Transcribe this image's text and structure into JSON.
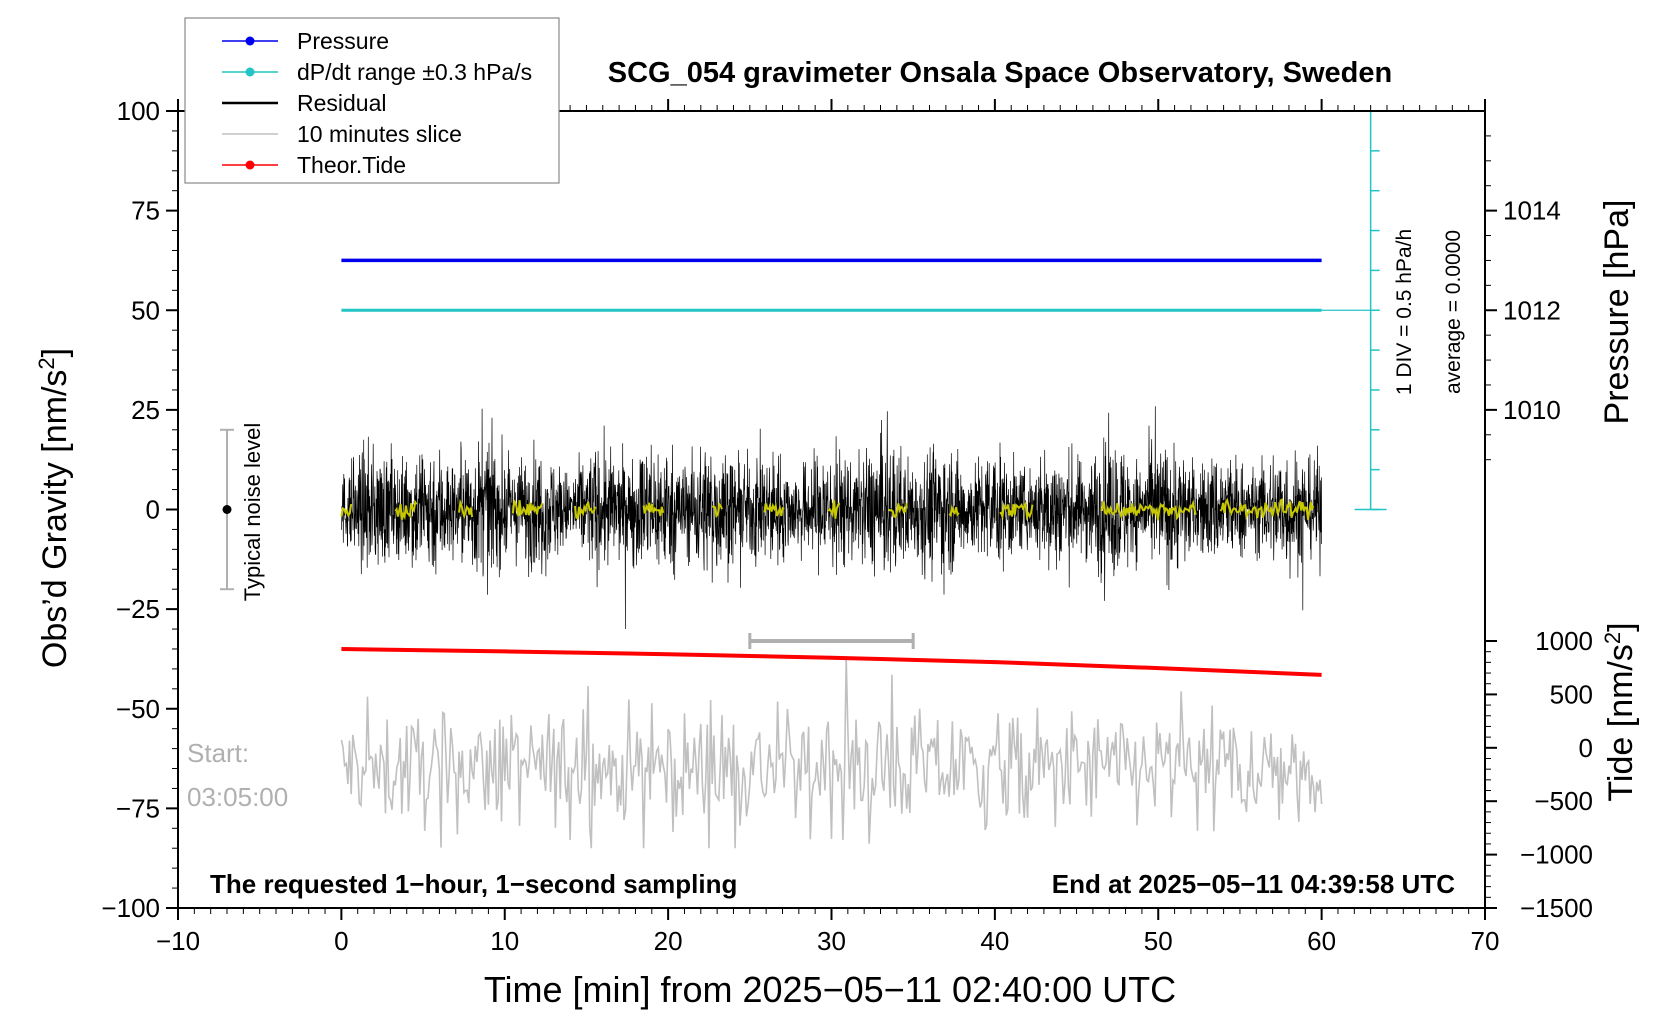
{
  "chart_data": {
    "type": "line",
    "title": "SCG_054 gravimeter Onsala Space Observatory, Sweden",
    "xlabel": "Time [min] from 2025−05−11 02:40:00 UTC",
    "ylabel_left": "Obs’d Gravity [nm/s",
    "ylabel_left_sup": "2",
    "ylabel_left_end": "]",
    "ylabel_right_top": "Pressure [hPa]",
    "ylabel_right_bottom": "Tide [nm/s",
    "ylabel_right_bottom_sup": "2",
    "ylabel_right_bottom_end": "]",
    "xlim": [
      -10,
      70
    ],
    "ylim": [
      -100,
      100
    ],
    "x_ticks": [
      -10,
      0,
      10,
      20,
      30,
      40,
      50,
      60,
      70
    ],
    "x_tick_labels": [
      "−10",
      "0",
      "10",
      "20",
      "30",
      "40",
      "50",
      "60",
      "70"
    ],
    "y_ticks": [
      -100,
      -75,
      -50,
      -25,
      0,
      25,
      50,
      75,
      100
    ],
    "y_tick_labels": [
      "−100",
      "−75",
      "−50",
      "−25",
      "0",
      "25",
      "50",
      "75",
      "100"
    ],
    "pressure_axis": {
      "range_hPa": [
        1008,
        1016
      ],
      "ticks": [
        1010,
        1012,
        1014
      ],
      "tick_labels": [
        "1010",
        "1012",
        "1014"
      ]
    },
    "tide_axis": {
      "range_nm_s2": [
        -1500,
        1000
      ],
      "ticks": [
        -1500,
        -1000,
        -500,
        0,
        500,
        1000
      ],
      "tick_labels": [
        "−1500",
        "−1000",
        "−500",
        "0",
        "500",
        "1000"
      ]
    },
    "legend": {
      "placement": "top-left",
      "entries": [
        {
          "label": "Pressure",
          "color": "#0000ee",
          "marker": true
        },
        {
          "label": "dP/dt range ±0.3 hPa/s",
          "color": "#22c4c4",
          "marker": true
        },
        {
          "label": "Residual",
          "color": "#000000",
          "marker": false
        },
        {
          "label": "10 minutes slice",
          "color": "#c0c0c0",
          "marker": false
        },
        {
          "label": "Theor.Tide",
          "color": "#ff0000",
          "marker": true
        }
      ]
    },
    "series": [
      {
        "name": "Pressure",
        "color": "#0000ee",
        "x": [
          0,
          60
        ],
        "y_hPa": [
          1013.0,
          1013.0
        ]
      },
      {
        "name": "dP/dt range ±0.3 hPa/s",
        "color": "#22c4c4",
        "x": [
          0,
          60
        ],
        "y": [
          50,
          50
        ]
      },
      {
        "name": "Residual",
        "color": "#000000",
        "x_range": [
          0,
          60
        ],
        "y_center": 0,
        "y_envelope": [
          -30,
          35
        ]
      },
      {
        "name": "10 minutes slice",
        "color": "#c0c0c0",
        "x_range": [
          0,
          60
        ],
        "y_center": -65,
        "y_envelope": [
          -85,
          -37
        ]
      },
      {
        "name": "Theor.Tide",
        "color": "#ff0000",
        "x": [
          0,
          10,
          20,
          30,
          40,
          50,
          60
        ],
        "y": [
          -35,
          -35.6,
          -36.3,
          -37.2,
          -38.3,
          -39.8,
          -41.5
        ]
      },
      {
        "name": "smoothed",
        "color": "#c8c800",
        "x_range": [
          0,
          60
        ],
        "y_center": 0
      }
    ],
    "annotations": {
      "noise_label": "Typical noise level",
      "noise_bar_y": [
        -20,
        20
      ],
      "noise_bar_x": -7,
      "slice_bracket_x": [
        25,
        35
      ],
      "slice_bracket_y": -33,
      "start_line1": "Start:",
      "start_line2": "03:05:00",
      "footer_left": "The requested 1−hour, 1−second sampling",
      "footer_right": "End at 2025−05−11 04:39:58 UTC",
      "pressure_scale_line1": "1 DIV = 0.5 hPa/h",
      "pressure_scale_line2": "average = 0.0000"
    }
  }
}
